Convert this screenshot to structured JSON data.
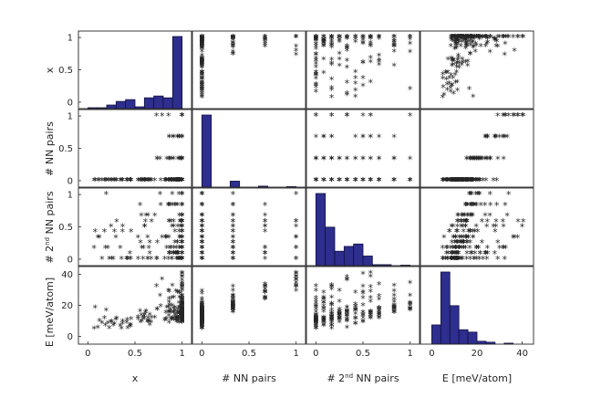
{
  "chart_data": {
    "type": "scatter-matrix",
    "variables": [
      "x",
      "# NN pairs",
      "# 2nd NN pairs",
      "E [meV/atom]"
    ],
    "axis_labels": {
      "x": "x",
      "nn": "# NN pairs",
      "nn2_prefix": "# 2",
      "nn2_sup": "nd",
      "nn2_suffix": " NN pairs",
      "e": "E [meV/atom]"
    },
    "ticks": {
      "x": [
        "0",
        "0.5",
        "1"
      ],
      "nn": [
        "0",
        "0.5",
        "1"
      ],
      "nn2": [
        "0",
        "0.5",
        "1"
      ],
      "e": [
        "0",
        "20",
        "40"
      ]
    },
    "ranges": {
      "x": [
        -0.1,
        1.1
      ],
      "nn": [
        -0.1,
        1.1
      ],
      "nn2": [
        -0.1,
        1.1
      ],
      "e": [
        -5,
        45
      ]
    },
    "histograms": {
      "x": {
        "bins": [
          0.0,
          0.1,
          0.2,
          0.3,
          0.4,
          0.5,
          0.6,
          0.7,
          0.8,
          0.9,
          1.0
        ],
        "counts": [
          1,
          1,
          4,
          8,
          10,
          2,
          12,
          14,
          12,
          80
        ]
      },
      "nn": {
        "bins": [
          0.0,
          0.1,
          0.2,
          0.3,
          0.4,
          0.5,
          0.6,
          0.7,
          0.8,
          0.9,
          1.0
        ],
        "counts": [
          145,
          0,
          0,
          12,
          0,
          0,
          2,
          0,
          0,
          1
        ]
      },
      "nn2": {
        "bins": [
          0.0,
          0.1,
          0.2,
          0.3,
          0.4,
          0.5,
          0.6,
          0.7,
          0.8,
          0.9,
          1.0
        ],
        "counts": [
          150,
          80,
          30,
          40,
          45,
          20,
          2,
          2,
          0,
          1
        ]
      },
      "e": {
        "bins": [
          0,
          4,
          8,
          12,
          16,
          20,
          24,
          28,
          32,
          36,
          40
        ],
        "counts": [
          40,
          150,
          80,
          30,
          25,
          6,
          4,
          0,
          2,
          0
        ]
      }
    },
    "marker": "*",
    "marker_color": "#ff0000",
    "bar_color": "#2e2e8e",
    "bar_edge_color": "#101040"
  }
}
